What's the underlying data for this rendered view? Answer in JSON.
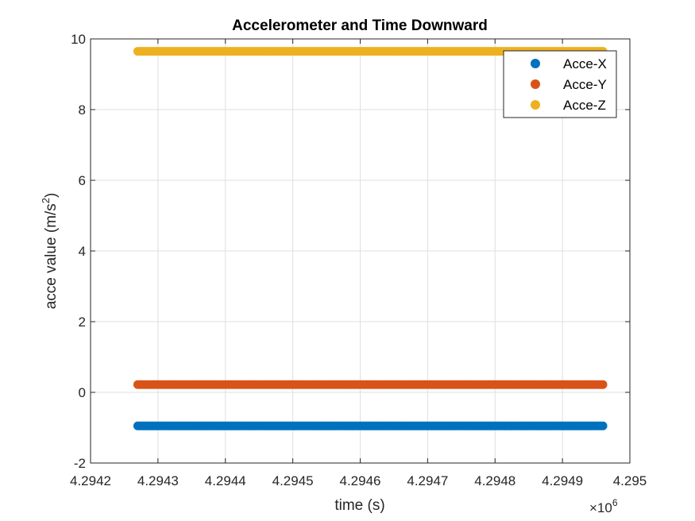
{
  "chart_data": {
    "type": "scatter",
    "title": "Accelerometer and Time Downward",
    "xlabel": "time (s)",
    "ylabel": "acce value (m/s",
    "ylabel_sup": "2",
    "ylabel_end": ")",
    "x_exponent_base": "×10",
    "x_exponent_power": "6",
    "xlim": [
      4.2942,
      4.295
    ],
    "ylim": [
      -2,
      10
    ],
    "xticks": [
      4.2942,
      4.2943,
      4.2944,
      4.2945,
      4.2946,
      4.2947,
      4.2948,
      4.2949,
      4.295
    ],
    "xtick_labels": [
      "4.2942",
      "4.2943",
      "4.2944",
      "4.2945",
      "4.2946",
      "4.2947",
      "4.2948",
      "4.2949",
      "4.295"
    ],
    "yticks": [
      -2,
      0,
      2,
      4,
      6,
      8,
      10
    ],
    "ytick_labels": [
      "-2",
      "0",
      "2",
      "4",
      "6",
      "8",
      "10"
    ],
    "grid": true,
    "legend_position": "top-right",
    "x_range": [
      4.29427,
      4.29496
    ],
    "series": [
      {
        "name": "Acce-X",
        "color": "#0072bd",
        "y": -0.95
      },
      {
        "name": "Acce-Y",
        "color": "#d95319",
        "y": 0.22
      },
      {
        "name": "Acce-Z",
        "color": "#edb120",
        "y": 9.65
      }
    ]
  }
}
